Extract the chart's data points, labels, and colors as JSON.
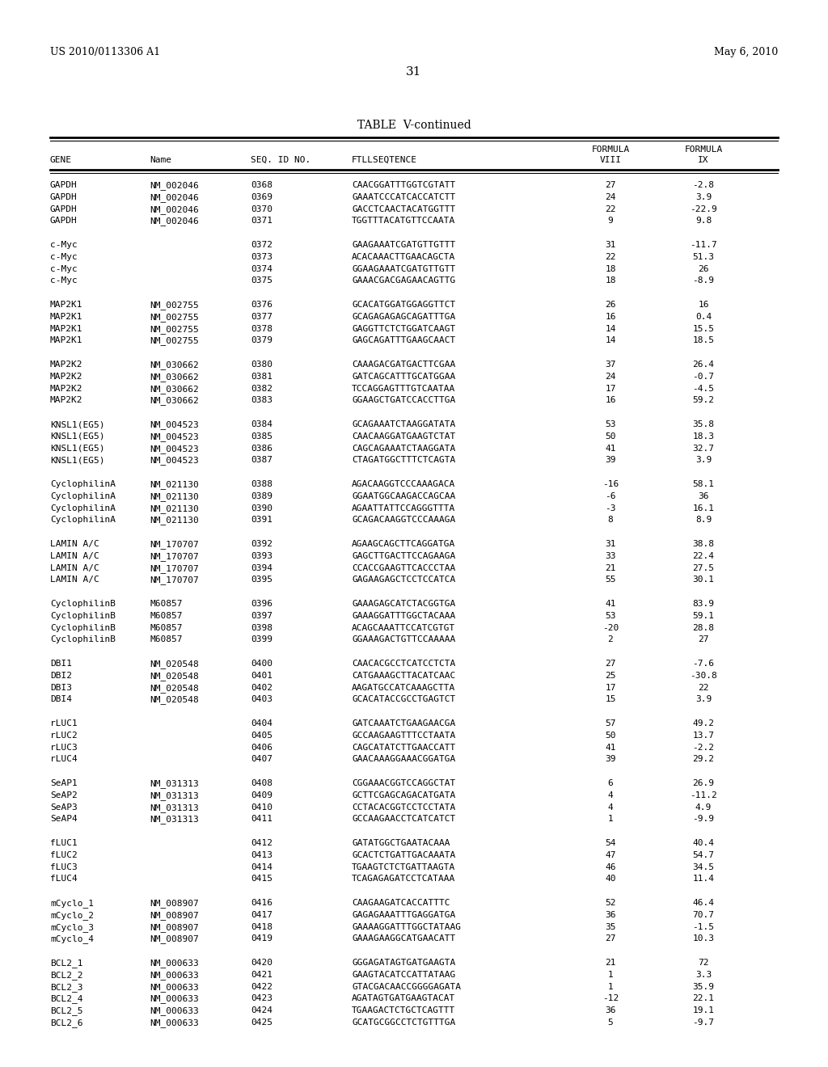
{
  "header_left": "US 2010/0113306 A1",
  "header_right": "May 6, 2010",
  "page_number": "31",
  "table_title": "TABLE  V-continued",
  "rows": [
    [
      "GAPDH",
      "NM_002046",
      "0368",
      "CAACGGATTTGGTCGTATT",
      "27",
      "-2.8"
    ],
    [
      "GAPDH",
      "NM_002046",
      "0369",
      "GAAATCCCATCACCATCTT",
      "24",
      "3.9"
    ],
    [
      "GAPDH",
      "NM_002046",
      "0370",
      "GACCTCAACTACATGGTTT",
      "22",
      "-22.9"
    ],
    [
      "GAPDH",
      "NM_002046",
      "0371",
      "TGGTTTACATGTTCCAATA",
      "9",
      "9.8"
    ],
    [
      "",
      "",
      "",
      "",
      "",
      ""
    ],
    [
      "c-Myc",
      "",
      "0372",
      "GAAGAAATCGATGTTGTTT",
      "31",
      "-11.7"
    ],
    [
      "c-Myc",
      "",
      "0373",
      "ACACAAACTTGAACAGCTA",
      "22",
      "51.3"
    ],
    [
      "c-Myc",
      "",
      "0374",
      "GGAAGAAATCGATGTTGTT",
      "18",
      "26"
    ],
    [
      "c-Myc",
      "",
      "0375",
      "GAAACGACGAGAACAGTTG",
      "18",
      "-8.9"
    ],
    [
      "",
      "",
      "",
      "",
      "",
      ""
    ],
    [
      "MAP2K1",
      "NM_002755",
      "0376",
      "GCACATGGATGGAGGTTCT",
      "26",
      "16"
    ],
    [
      "MAP2K1",
      "NM_002755",
      "0377",
      "GCAGAGAGAGCAGATTTGA",
      "16",
      "0.4"
    ],
    [
      "MAP2K1",
      "NM_002755",
      "0378",
      "GAGGTTCTCTGGATCAAGT",
      "14",
      "15.5"
    ],
    [
      "MAP2K1",
      "NM_002755",
      "0379",
      "GAGCAGATTTGAAGCAACT",
      "14",
      "18.5"
    ],
    [
      "",
      "",
      "",
      "",
      "",
      ""
    ],
    [
      "MAP2K2",
      "NM_030662",
      "0380",
      "CAAAGACGATGACTTCGAA",
      "37",
      "26.4"
    ],
    [
      "MAP2K2",
      "NM_030662",
      "0381",
      "GATCAGCATTTGCATGGAA",
      "24",
      "-0.7"
    ],
    [
      "MAP2K2",
      "NM_030662",
      "0382",
      "TCCAGGAGTTTGTCAATAA",
      "17",
      "-4.5"
    ],
    [
      "MAP2K2",
      "NM_030662",
      "0383",
      "GGAAGCTGATCCACCTTGA",
      "16",
      "59.2"
    ],
    [
      "",
      "",
      "",
      "",
      "",
      ""
    ],
    [
      "KNSL1(EG5)",
      "NM_004523",
      "0384",
      "GCAGAAATCTAAGGATATA",
      "53",
      "35.8"
    ],
    [
      "KNSL1(EG5)",
      "NM_004523",
      "0385",
      "CAACAAGGATGAAGTCTAT",
      "50",
      "18.3"
    ],
    [
      "KNSL1(EG5)",
      "NM_004523",
      "0386",
      "CAGCAGAAATCTAAGGATA",
      "41",
      "32.7"
    ],
    [
      "KNSL1(EG5)",
      "NM_004523",
      "0387",
      "CTAGATGGCTTTCTCAGTA",
      "39",
      "3.9"
    ],
    [
      "",
      "",
      "",
      "",
      "",
      ""
    ],
    [
      "CyclophilinA",
      "NM_021130",
      "0388",
      "AGACAAGGTCCCAAAGACA",
      "-16",
      "58.1"
    ],
    [
      "CyclophilinA",
      "NM_021130",
      "0389",
      "GGAATGGCAAGACCAGCAA",
      "-6",
      "36"
    ],
    [
      "CyclophilinA",
      "NM_021130",
      "0390",
      "AGAATTATTCCAGGGTTTA",
      "-3",
      "16.1"
    ],
    [
      "CyclophilinA",
      "NM_021130",
      "0391",
      "GCAGACAAGGTCCCAAAGA",
      "8",
      "8.9"
    ],
    [
      "",
      "",
      "",
      "",
      "",
      ""
    ],
    [
      "LAMIN A/C",
      "NM_170707",
      "0392",
      "AGAAGCAGCTTCAGGATGA",
      "31",
      "38.8"
    ],
    [
      "LAMIN A/C",
      "NM_170707",
      "0393",
      "GAGCTTGACTTCCAGAAGA",
      "33",
      "22.4"
    ],
    [
      "LAMIN A/C",
      "NM_170707",
      "0394",
      "CCACCGAAGTTCACCCTAA",
      "21",
      "27.5"
    ],
    [
      "LAMIN A/C",
      "NM_170707",
      "0395",
      "GAGAAGAGCTCCTCCATCA",
      "55",
      "30.1"
    ],
    [
      "",
      "",
      "",
      "",
      "",
      ""
    ],
    [
      "CyclophilinB",
      "M60857",
      "0396",
      "GAAAGAGCATCTACGGTGA",
      "41",
      "83.9"
    ],
    [
      "CyclophilinB",
      "M60857",
      "0397",
      "GAAAGGATTTGGCTACAAA",
      "53",
      "59.1"
    ],
    [
      "CyclophilinB",
      "M60857",
      "0398",
      "ACAGCAAATTCCATCGTGT",
      "-20",
      "28.8"
    ],
    [
      "CyclophilinB",
      "M60857",
      "0399",
      "GGAAAGACTGTTCCAAAAA",
      "2",
      "27"
    ],
    [
      "",
      "",
      "",
      "",
      "",
      ""
    ],
    [
      "DBI1",
      "NM_020548",
      "0400",
      "CAACACGCCTCATCCTCTA",
      "27",
      "-7.6"
    ],
    [
      "DBI2",
      "NM_020548",
      "0401",
      "CATGAAAGCTTACATCAAC",
      "25",
      "-30.8"
    ],
    [
      "DBI3",
      "NM_020548",
      "0402",
      "AAGATGCCATCAAAGCTTA",
      "17",
      "22"
    ],
    [
      "DBI4",
      "NM_020548",
      "0403",
      "GCACATACCGCCTGAGTCT",
      "15",
      "3.9"
    ],
    [
      "",
      "",
      "",
      "",
      "",
      ""
    ],
    [
      "rLUC1",
      "",
      "0404",
      "GATCAAATCTGAAGAACGA",
      "57",
      "49.2"
    ],
    [
      "rLUC2",
      "",
      "0405",
      "GCCAAGAAGTTTCCTAATA",
      "50",
      "13.7"
    ],
    [
      "rLUC3",
      "",
      "0406",
      "CAGCATATCTTGAACCATT",
      "41",
      "-2.2"
    ],
    [
      "rLUC4",
      "",
      "0407",
      "GAACAAAGGAAACGGATGA",
      "39",
      "29.2"
    ],
    [
      "",
      "",
      "",
      "",
      "",
      ""
    ],
    [
      "SeAP1",
      "NM_031313",
      "0408",
      "CGGAAACGGTCCAGGCTAT",
      "6",
      "26.9"
    ],
    [
      "SeAP2",
      "NM_031313",
      "0409",
      "GCTTCGAGCAGACATGATA",
      "4",
      "-11.2"
    ],
    [
      "SeAP3",
      "NM_031313",
      "0410",
      "CCTACACGGTCCTCCTATA",
      "4",
      "4.9"
    ],
    [
      "SeAP4",
      "NM_031313",
      "0411",
      "GCCAAGAACCTCATCATCT",
      "1",
      "-9.9"
    ],
    [
      "",
      "",
      "",
      "",
      "",
      ""
    ],
    [
      "fLUC1",
      "",
      "0412",
      "GATATGGCTGAATACAAA",
      "54",
      "40.4"
    ],
    [
      "fLUC2",
      "",
      "0413",
      "GCACTCTGATTGACAAATA",
      "47",
      "54.7"
    ],
    [
      "fLUC3",
      "",
      "0414",
      "TGAAGTCTCTGATTAAGTA",
      "46",
      "34.5"
    ],
    [
      "fLUC4",
      "",
      "0415",
      "TCAGAGAGATCCTCATAAA",
      "40",
      "11.4"
    ],
    [
      "",
      "",
      "",
      "",
      "",
      ""
    ],
    [
      "mCyclo_1",
      "NM_008907",
      "0416",
      "CAAGAAGATCACCATTTC",
      "52",
      "46.4"
    ],
    [
      "mCyclo_2",
      "NM_008907",
      "0417",
      "GAGAGAAATTTGAGGATGA",
      "36",
      "70.7"
    ],
    [
      "mCyclo_3",
      "NM_008907",
      "0418",
      "GAAAAGGATTTGGCTATAAG",
      "35",
      "-1.5"
    ],
    [
      "mCyclo_4",
      "NM_008907",
      "0419",
      "GAAAGAAGGCATGAACATT",
      "27",
      "10.3"
    ],
    [
      "",
      "",
      "",
      "",
      "",
      ""
    ],
    [
      "BCL2_1",
      "NM_000633",
      "0420",
      "GGGAGATAGTGATGAAGTA",
      "21",
      "72"
    ],
    [
      "BCL2_2",
      "NM_000633",
      "0421",
      "GAAGTACATCCATTATAAG",
      "1",
      "3.3"
    ],
    [
      "BCL2_3",
      "NM_000633",
      "0422",
      "GTACGACAACCGGGGAGATA",
      "1",
      "35.9"
    ],
    [
      "BCL2_4",
      "NM_000633",
      "0423",
      "AGATAGTGATGAAGTACAT",
      "-12",
      "22.1"
    ],
    [
      "BCL2_5",
      "NM_000633",
      "0424",
      "TGAAGACTCTGCTCAGTTT",
      "36",
      "19.1"
    ],
    [
      "BCL2_6",
      "NM_000633",
      "0425",
      "GCATGCGGCCTCTGTTTGA",
      "5",
      "-9.7"
    ]
  ],
  "bg_color": "#ffffff",
  "text_color": "#000000"
}
